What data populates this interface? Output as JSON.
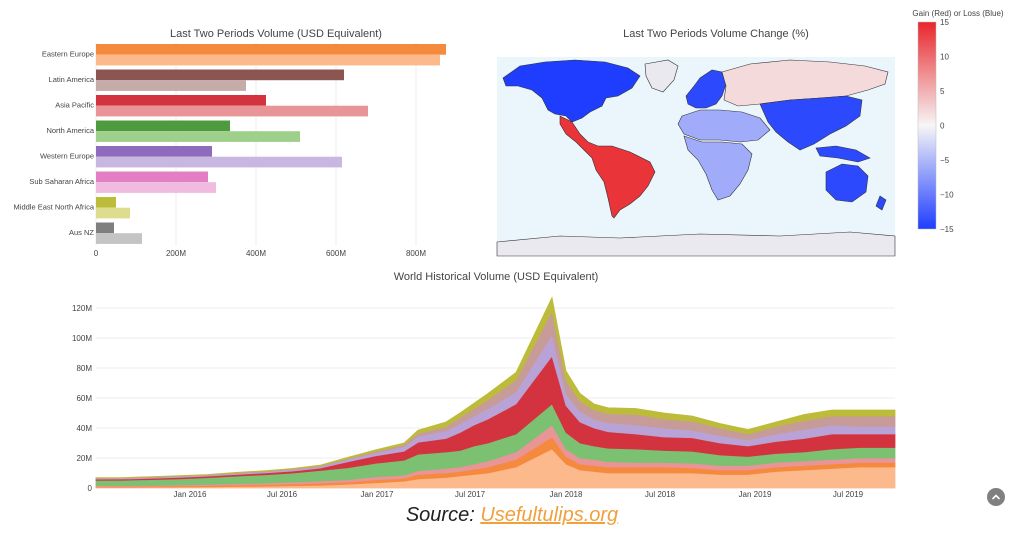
{
  "charts": {
    "bar_title": "Last Two Periods Volume (USD Equivalent)",
    "map_title": "Last Two Periods Volume Change (%)",
    "area_title": "World Historical Volume (USD Equivalent)",
    "colorbar_title": "Gain (Red) or Loss (Blue)"
  },
  "colors": {
    "bar_dark": [
      "#f58a3f",
      "#8b5652",
      "#d3333f",
      "#4d9b3e",
      "#8e6bbd",
      "#e27fc4",
      "#bcbc3a",
      "#7f7f7f"
    ],
    "bar_light": [
      "#fbb98c",
      "#c6aba8",
      "#e99496",
      "#9fd08b",
      "#c8b7e0",
      "#f1bbdf",
      "#dedd8f",
      "#c4c4c4"
    ],
    "gain_red": "#e8262c",
    "loss_blue": "#1f3dff",
    "neutral": "#f4f4f4",
    "ocean": "#eaf5fc",
    "land_none": "#e9e9ef"
  },
  "source": {
    "prefix": "Source: ",
    "link": "Usefultulips.org"
  },
  "ui": {
    "scroll_top_icon": "chevron-up-icon"
  },
  "chart_data": [
    {
      "type": "bar",
      "orientation": "horizontal",
      "title": "Last Two Periods Volume (USD Equivalent)",
      "categories": [
        "Eastern Europe",
        "Latin America",
        "Asia Pacific",
        "North America",
        "Western Europe",
        "Sub Saharan Africa",
        "Middle East North Africa",
        "Aus NZ"
      ],
      "series": [
        {
          "values": [
            875,
            620,
            425,
            335,
            290,
            280,
            50,
            45
          ]
        },
        {
          "values": [
            860,
            375,
            680,
            510,
            615,
            300,
            85,
            115
          ]
        }
      ],
      "xticks": [
        "0",
        "200M",
        "400M",
        "600M",
        "800M"
      ],
      "xlim": [
        0,
        880
      ]
    },
    {
      "type": "choropleth",
      "title": "Last Two Periods Volume Change (%)",
      "colorbar": {
        "title": "Gain (Red) or Loss (Blue)",
        "range": [
          -15,
          15
        ],
        "ticks": [
          "15",
          "10",
          "5",
          "0",
          "−5",
          "−10",
          "−15"
        ]
      },
      "regions": [
        {
          "name": "Latin America",
          "value": 14
        },
        {
          "name": "North America",
          "value": -15
        },
        {
          "name": "Western Europe",
          "value": -14
        },
        {
          "name": "Eastern Europe",
          "value": 2
        },
        {
          "name": "Asia Pacific",
          "value": -14
        },
        {
          "name": "Middle East North Africa",
          "value": -6
        },
        {
          "name": "Sub Saharan Africa",
          "value": -6
        },
        {
          "name": "Aus NZ",
          "value": -14
        }
      ]
    },
    {
      "type": "area",
      "stacked": true,
      "title": "World Historical Volume (USD Equivalent)",
      "x": [
        "2015-08",
        "2015-10",
        "2015-12",
        "2016-02",
        "2016-04",
        "2016-06",
        "2016-08",
        "2016-10",
        "2016-12",
        "2017-01",
        "2017-03",
        "2017-05",
        "2017-06",
        "2017-08",
        "2017-09",
        "2017-10",
        "2017-11",
        "2017-12",
        "2017-12-15",
        "2018-01",
        "2018-02",
        "2018-03",
        "2018-04",
        "2018-06",
        "2018-08",
        "2018-10",
        "2018-12",
        "2019-01",
        "2019-03",
        "2019-05",
        "2019-07",
        "2019-09",
        "2019-10"
      ],
      "series": [
        {
          "values": [
            0.5,
            0.5,
            0.6,
            0.7,
            0.8,
            1.0,
            1.2,
            1.5,
            1.8,
            2.5,
            3.5,
            4.5,
            6,
            7,
            8,
            9,
            10,
            14,
            26,
            16,
            12,
            11,
            10,
            10,
            10,
            10,
            9,
            9,
            11,
            12,
            13,
            14,
            14
          ]
        },
        {
          "values": [
            0.5,
            0.5,
            0.6,
            0.7,
            0.8,
            1.0,
            1.1,
            1.2,
            1.5,
            1.5,
            2,
            2,
            3,
            3,
            3,
            3.5,
            4,
            5,
            8,
            5,
            4,
            4,
            4,
            4,
            4,
            3.5,
            3,
            3,
            3,
            3,
            3,
            3,
            3
          ]
        },
        {
          "values": [
            0.6,
            0.6,
            0.6,
            0.7,
            0.8,
            0.9,
            1.0,
            1.2,
            1.4,
            1.5,
            2,
            2,
            2.5,
            3,
            3,
            3.5,
            4,
            5,
            8,
            5,
            4,
            4,
            3.5,
            3,
            3,
            3,
            3,
            3,
            3,
            3,
            3,
            3,
            3
          ]
        },
        {
          "values": [
            3.5,
            3.6,
            3.8,
            4.0,
            4.5,
            5.0,
            5.5,
            6,
            7,
            8,
            9,
            10,
            11,
            11,
            11,
            12,
            12,
            12,
            14,
            11,
            10,
            9,
            9,
            9,
            8,
            8,
            7,
            6,
            6,
            6,
            7,
            7,
            7
          ]
        },
        {
          "values": [
            0.8,
            0.8,
            0.9,
            1.0,
            1.0,
            1.1,
            1.2,
            1.4,
            1.6,
            4,
            5,
            6,
            8,
            9,
            12,
            14,
            16,
            20,
            32,
            18,
            14,
            12,
            11,
            10,
            9,
            9,
            8,
            7,
            8,
            9,
            10,
            9,
            9
          ]
        },
        {
          "values": [
            0.5,
            0.5,
            0.6,
            0.6,
            0.6,
            0.7,
            0.8,
            0.9,
            1.0,
            1.5,
            2,
            3,
            4,
            5,
            6,
            6,
            7,
            8,
            14,
            8,
            7,
            6,
            6,
            6,
            6,
            5,
            5,
            4,
            5,
            6,
            6,
            5,
            5
          ]
        },
        {
          "values": [
            0.3,
            0.3,
            0.3,
            0.3,
            0.3,
            0.4,
            0.4,
            0.5,
            0.5,
            0.8,
            1,
            1.5,
            2,
            3,
            4,
            5,
            6,
            8,
            16,
            9,
            7,
            6,
            6,
            7,
            6,
            6,
            5,
            4,
            5,
            6,
            6,
            7,
            7
          ]
        },
        {
          "values": [
            0.2,
            0.2,
            0.2,
            0.2,
            0.2,
            0.3,
            0.3,
            0.3,
            0.4,
            0.7,
            1,
            1,
            2,
            3,
            3,
            3.5,
            4,
            5,
            9,
            6,
            5,
            4,
            4,
            4,
            4,
            3.5,
            3,
            3,
            3,
            4,
            4,
            4,
            4
          ]
        }
      ],
      "series_colors": [
        "#fbb98c",
        "#f58a3f",
        "#e99496",
        "#7cc072",
        "#d3333f",
        "#b9a2d6",
        "#c79c98",
        "#bcbc3a"
      ],
      "yticks": [
        "0",
        "20M",
        "40M",
        "60M",
        "80M",
        "100M",
        "120M"
      ],
      "ylim": [
        0,
        128
      ],
      "xticks": [
        "Jan 2016",
        "Jul 2016",
        "Jan 2017",
        "Jul 2017",
        "Jan 2018",
        "Jul 2018",
        "Jan 2019",
        "Jul 2019"
      ]
    }
  ]
}
